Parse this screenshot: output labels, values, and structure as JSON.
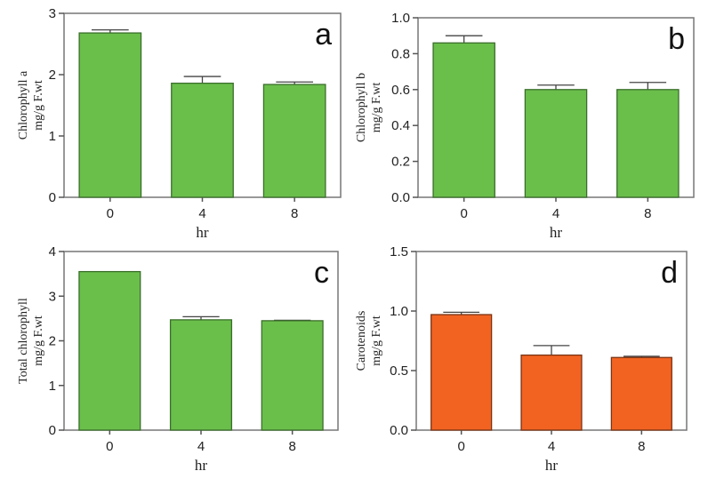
{
  "chart_data": [
    {
      "type": "bar",
      "panel_label": "a",
      "categories": [
        "0",
        "4",
        "8"
      ],
      "values": [
        2.68,
        1.86,
        1.84
      ],
      "errors": [
        0.05,
        0.11,
        0.04
      ],
      "xlabel": "hr",
      "ylabel": [
        "Chlorophyll a",
        "mg/g F.wt"
      ],
      "ylim": [
        0,
        3
      ],
      "yticks": [
        "0",
        "1",
        "2",
        "3"
      ],
      "ytick_values": [
        0,
        1,
        2,
        3
      ],
      "color": "#6abf4b",
      "edge_color": "#3a6e2a",
      "grid": false
    },
    {
      "type": "bar",
      "panel_label": "b",
      "categories": [
        "0",
        "4",
        "8"
      ],
      "values": [
        0.86,
        0.6,
        0.6
      ],
      "errors": [
        0.04,
        0.025,
        0.04
      ],
      "xlabel": "hr",
      "ylabel": [
        "Chlorophyll b",
        "mg/g F.wt"
      ],
      "ylim": [
        0,
        1.0
      ],
      "yticks": [
        "0.0",
        "0.2",
        "0.4",
        "0.6",
        "0.8",
        "1.0"
      ],
      "ytick_values": [
        0,
        0.2,
        0.4,
        0.6,
        0.8,
        1.0
      ],
      "color": "#6abf4b",
      "edge_color": "#3a6e2a",
      "grid": false
    },
    {
      "type": "bar",
      "panel_label": "c",
      "categories": [
        "0",
        "4",
        "8"
      ],
      "values": [
        3.55,
        2.47,
        2.45
      ],
      "errors": [
        0,
        0.07,
        0.01
      ],
      "xlabel": "hr",
      "ylabel": [
        "Total chlorophyll",
        "mg/g F.wt"
      ],
      "ylim": [
        0,
        4
      ],
      "yticks": [
        "0",
        "1",
        "2",
        "3",
        "4"
      ],
      "ytick_values": [
        0,
        1,
        2,
        3,
        4
      ],
      "color": "#6abf4b",
      "edge_color": "#3a6e2a",
      "grid": false
    },
    {
      "type": "bar",
      "panel_label": "d",
      "categories": [
        "0",
        "4",
        "8"
      ],
      "values": [
        0.97,
        0.63,
        0.61
      ],
      "errors": [
        0.02,
        0.08,
        0.01
      ],
      "xlabel": "hr",
      "ylabel": [
        "Carotenoids",
        "mg/g F.wt"
      ],
      "ylim": [
        0,
        1.5
      ],
      "yticks": [
        "0.0",
        "0.5",
        "1.0",
        "1.5"
      ],
      "ytick_values": [
        0,
        0.5,
        1.0,
        1.5
      ],
      "color": "#f26322",
      "edge_color": "#7a3314",
      "grid": false
    }
  ]
}
